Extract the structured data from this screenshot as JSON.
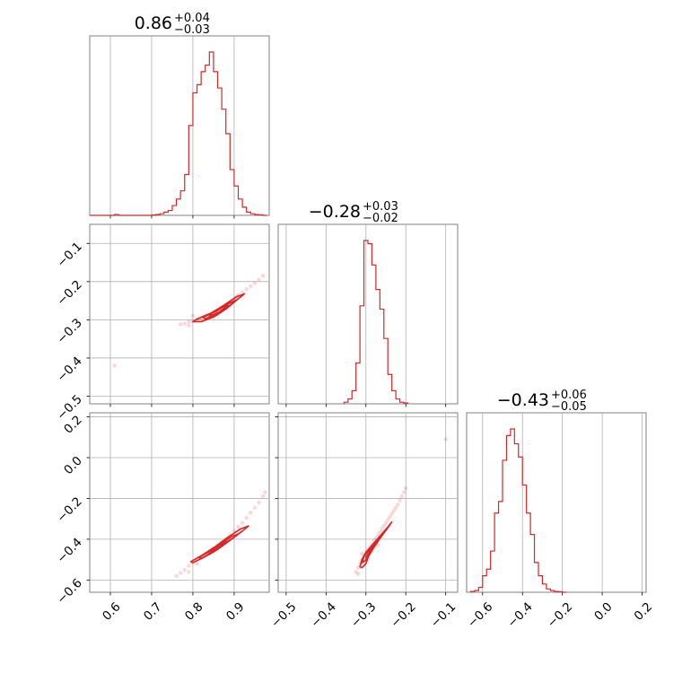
{
  "chart_data": {
    "type": "corner",
    "color": "#d62728",
    "grid": true,
    "parameters": [
      {
        "title": {
          "median": "0.86",
          "plus": "+0.04",
          "minus": "−0.03"
        },
        "range": [
          0.55,
          0.985
        ],
        "ticks": [
          0.6,
          0.7,
          0.8,
          0.9
        ],
        "tick_labels": [
          "0.6",
          "0.7",
          "0.8",
          "0.9"
        ]
      },
      {
        "title": {
          "median": "−0.28",
          "plus": "+0.03",
          "minus": "−0.02"
        },
        "range": [
          -0.52,
          -0.07
        ],
        "ticks": [
          -0.5,
          -0.4,
          -0.3,
          -0.2,
          -0.1
        ],
        "tick_labels": [
          "−0.5",
          "−0.4",
          "−0.3",
          "−0.2",
          "−0.1"
        ],
        "y_range": [
          -0.52,
          -0.05
        ],
        "y_ticks": [
          -0.5,
          -0.4,
          -0.3,
          -0.2,
          -0.1
        ],
        "y_tick_labels": [
          "−0.5",
          "−0.4",
          "−0.3",
          "−0.2",
          "−0.1"
        ]
      },
      {
        "title": {
          "median": "−0.43",
          "plus": "+0.06",
          "minus": "−0.05"
        },
        "range": [
          -0.68,
          0.22
        ],
        "ticks": [
          -0.6,
          -0.4,
          -0.2,
          0.0,
          0.2
        ],
        "tick_labels": [
          "−0.6",
          "−0.4",
          "−0.2",
          "0.0",
          "0.2"
        ],
        "y_range": [
          -0.66,
          0.22
        ],
        "y_ticks": [
          -0.6,
          -0.4,
          -0.2,
          0.0,
          0.2
        ],
        "y_tick_labels": [
          "−0.6",
          "−0.4",
          "−0.2",
          "0.0",
          "0.2"
        ]
      }
    ],
    "histograms": [
      {
        "param": 0,
        "bin_edges": [
          0.55,
          0.56,
          0.57,
          0.58,
          0.59,
          0.6,
          0.61,
          0.62,
          0.63,
          0.64,
          0.65,
          0.66,
          0.67,
          0.68,
          0.69,
          0.7,
          0.71,
          0.72,
          0.73,
          0.74,
          0.75,
          0.76,
          0.77,
          0.78,
          0.79,
          0.8,
          0.81,
          0.82,
          0.83,
          0.84,
          0.85,
          0.86,
          0.87,
          0.88,
          0.89,
          0.9,
          0.91,
          0.92,
          0.93,
          0.94,
          0.95,
          0.96,
          0.97,
          0.98
        ],
        "counts": [
          0,
          0,
          0,
          0,
          0,
          0,
          0.5,
          0,
          0,
          0,
          0,
          0,
          0,
          0,
          0,
          0.2,
          0.5,
          1,
          2,
          3,
          6,
          10,
          15,
          25,
          55,
          75,
          80,
          88,
          92,
          100,
          88,
          78,
          65,
          50,
          28,
          18,
          10,
          5,
          2,
          1,
          0.5,
          0.3,
          0
        ]
      },
      {
        "param": 1,
        "bin_edges": [
          -0.355,
          -0.345,
          -0.335,
          -0.325,
          -0.315,
          -0.305,
          -0.295,
          -0.285,
          -0.275,
          -0.265,
          -0.255,
          -0.245,
          -0.235,
          -0.225,
          -0.215,
          -0.205,
          -0.195
        ],
        "counts": [
          1,
          3,
          8,
          25,
          60,
          100,
          98,
          85,
          70,
          58,
          40,
          18,
          8,
          3,
          1,
          0.5
        ]
      },
      {
        "param": 2,
        "bin_edges": [
          -0.66,
          -0.64,
          -0.62,
          -0.6,
          -0.58,
          -0.56,
          -0.54,
          -0.52,
          -0.5,
          -0.48,
          -0.46,
          -0.44,
          -0.42,
          -0.4,
          -0.38,
          -0.36,
          -0.34,
          -0.32,
          -0.3,
          -0.28,
          -0.26,
          -0.24,
          -0.22,
          -0.2,
          -0.18
        ],
        "counts": [
          0.5,
          1,
          3,
          10,
          14,
          25,
          48,
          55,
          80,
          95,
          99,
          90,
          82,
          65,
          48,
          35,
          18,
          10,
          5,
          2,
          1,
          0.5,
          0.3,
          0
        ]
      }
    ],
    "scatter_panels": [
      {
        "x_param": 0,
        "y_param": 1,
        "samples": [
          [
            0.77,
            -0.312
          ],
          [
            0.78,
            -0.31
          ],
          [
            0.79,
            -0.305
          ],
          [
            0.8,
            -0.303
          ],
          [
            0.81,
            -0.3
          ],
          [
            0.815,
            -0.298
          ],
          [
            0.82,
            -0.296
          ],
          [
            0.825,
            -0.292
          ],
          [
            0.83,
            -0.29
          ],
          [
            0.835,
            -0.288
          ],
          [
            0.84,
            -0.286
          ],
          [
            0.845,
            -0.284
          ],
          [
            0.85,
            -0.28
          ],
          [
            0.855,
            -0.278
          ],
          [
            0.86,
            -0.276
          ],
          [
            0.865,
            -0.272
          ],
          [
            0.87,
            -0.27
          ],
          [
            0.875,
            -0.266
          ],
          [
            0.88,
            -0.262
          ],
          [
            0.885,
            -0.258
          ],
          [
            0.89,
            -0.255
          ],
          [
            0.895,
            -0.25
          ],
          [
            0.9,
            -0.245
          ],
          [
            0.905,
            -0.24
          ],
          [
            0.91,
            -0.235
          ],
          [
            0.92,
            -0.228
          ],
          [
            0.93,
            -0.22
          ],
          [
            0.94,
            -0.212
          ],
          [
            0.95,
            -0.204
          ],
          [
            0.96,
            -0.195
          ],
          [
            0.97,
            -0.185
          ],
          [
            0.61,
            -0.42
          ],
          [
            0.79,
            -0.315
          ],
          [
            0.8,
            -0.29
          ],
          [
            0.83,
            -0.3
          ],
          [
            0.86,
            -0.285
          ]
        ],
        "contours": [
          [
            [
              0.82,
              -0.305
            ],
            [
              0.85,
              -0.293
            ],
            [
              0.88,
              -0.272
            ],
            [
              0.91,
              -0.245
            ],
            [
              0.925,
              -0.232
            ],
            [
              0.905,
              -0.24
            ],
            [
              0.875,
              -0.262
            ],
            [
              0.845,
              -0.282
            ],
            [
              0.81,
              -0.298
            ],
            [
              0.8,
              -0.305
            ]
          ],
          [
            [
              0.83,
              -0.298
            ],
            [
              0.86,
              -0.284
            ],
            [
              0.89,
              -0.262
            ],
            [
              0.905,
              -0.248
            ],
            [
              0.885,
              -0.258
            ],
            [
              0.855,
              -0.278
            ],
            [
              0.825,
              -0.293
            ]
          ],
          [
            [
              0.84,
              -0.291
            ],
            [
              0.865,
              -0.279
            ],
            [
              0.885,
              -0.262
            ],
            [
              0.87,
              -0.268
            ],
            [
              0.845,
              -0.283
            ]
          ]
        ]
      },
      {
        "x_param": 0,
        "y_param": 2,
        "samples": [
          [
            0.76,
            -0.58
          ],
          [
            0.77,
            -0.565
          ],
          [
            0.78,
            -0.55
          ],
          [
            0.79,
            -0.53
          ],
          [
            0.8,
            -0.515
          ],
          [
            0.81,
            -0.5
          ],
          [
            0.82,
            -0.49
          ],
          [
            0.83,
            -0.475
          ],
          [
            0.84,
            -0.46
          ],
          [
            0.85,
            -0.445
          ],
          [
            0.86,
            -0.43
          ],
          [
            0.87,
            -0.415
          ],
          [
            0.88,
            -0.4
          ],
          [
            0.89,
            -0.38
          ],
          [
            0.9,
            -0.36
          ],
          [
            0.91,
            -0.34
          ],
          [
            0.92,
            -0.32
          ],
          [
            0.93,
            -0.295
          ],
          [
            0.94,
            -0.27
          ],
          [
            0.95,
            -0.245
          ],
          [
            0.96,
            -0.22
          ],
          [
            0.97,
            -0.19
          ],
          [
            0.975,
            -0.17
          ],
          [
            0.79,
            -0.56
          ],
          [
            0.81,
            -0.52
          ],
          [
            0.84,
            -0.47
          ],
          [
            0.87,
            -0.43
          ]
        ],
        "contours": [
          [
            [
              0.8,
              -0.515
            ],
            [
              0.83,
              -0.485
            ],
            [
              0.86,
              -0.45
            ],
            [
              0.89,
              -0.405
            ],
            [
              0.92,
              -0.36
            ],
            [
              0.935,
              -0.335
            ],
            [
              0.915,
              -0.35
            ],
            [
              0.885,
              -0.39
            ],
            [
              0.855,
              -0.435
            ],
            [
              0.825,
              -0.475
            ],
            [
              0.795,
              -0.51
            ]
          ],
          [
            [
              0.82,
              -0.495
            ],
            [
              0.85,
              -0.462
            ],
            [
              0.88,
              -0.42
            ],
            [
              0.91,
              -0.375
            ],
            [
              0.895,
              -0.385
            ],
            [
              0.865,
              -0.425
            ],
            [
              0.835,
              -0.465
            ],
            [
              0.815,
              -0.49
            ]
          ],
          [
            [
              0.835,
              -0.478
            ],
            [
              0.86,
              -0.448
            ],
            [
              0.89,
              -0.405
            ],
            [
              0.875,
              -0.418
            ],
            [
              0.848,
              -0.455
            ]
          ]
        ]
      },
      {
        "x_param": 1,
        "y_param": 2,
        "samples": [
          [
            -0.325,
            -0.56
          ],
          [
            -0.32,
            -0.54
          ],
          [
            -0.315,
            -0.52
          ],
          [
            -0.31,
            -0.5
          ],
          [
            -0.305,
            -0.48
          ],
          [
            -0.3,
            -0.465
          ],
          [
            -0.295,
            -0.45
          ],
          [
            -0.29,
            -0.44
          ],
          [
            -0.285,
            -0.425
          ],
          [
            -0.28,
            -0.41
          ],
          [
            -0.275,
            -0.395
          ],
          [
            -0.27,
            -0.38
          ],
          [
            -0.265,
            -0.365
          ],
          [
            -0.26,
            -0.35
          ],
          [
            -0.255,
            -0.335
          ],
          [
            -0.25,
            -0.32
          ],
          [
            -0.245,
            -0.305
          ],
          [
            -0.24,
            -0.29
          ],
          [
            -0.235,
            -0.275
          ],
          [
            -0.23,
            -0.26
          ],
          [
            -0.225,
            -0.245
          ],
          [
            -0.22,
            -0.23
          ],
          [
            -0.215,
            -0.21
          ],
          [
            -0.21,
            -0.19
          ],
          [
            -0.205,
            -0.17
          ],
          [
            -0.2,
            -0.15
          ],
          [
            -0.31,
            -0.47
          ],
          [
            -0.295,
            -0.5
          ],
          [
            -0.285,
            -0.46
          ],
          [
            -0.27,
            -0.43
          ],
          [
            -0.1,
            0.09
          ],
          [
            -0.32,
            -0.57
          ]
        ],
        "contours": [
          [
            [
              -0.315,
              -0.535
            ],
            [
              -0.31,
              -0.5
            ],
            [
              -0.3,
              -0.465
            ],
            [
              -0.285,
              -0.43
            ],
            [
              -0.265,
              -0.385
            ],
            [
              -0.245,
              -0.34
            ],
            [
              -0.235,
              -0.315
            ],
            [
              -0.24,
              -0.33
            ],
            [
              -0.255,
              -0.37
            ],
            [
              -0.27,
              -0.41
            ],
            [
              -0.285,
              -0.455
            ],
            [
              -0.295,
              -0.49
            ],
            [
              -0.3,
              -0.52
            ],
            [
              -0.31,
              -0.54
            ]
          ],
          [
            [
              -0.31,
              -0.515
            ],
            [
              -0.305,
              -0.485
            ],
            [
              -0.29,
              -0.45
            ],
            [
              -0.27,
              -0.405
            ],
            [
              -0.255,
              -0.365
            ],
            [
              -0.26,
              -0.38
            ],
            [
              -0.275,
              -0.425
            ],
            [
              -0.29,
              -0.47
            ],
            [
              -0.302,
              -0.505
            ]
          ],
          [
            [
              -0.3,
              -0.49
            ],
            [
              -0.29,
              -0.46
            ],
            [
              -0.275,
              -0.425
            ],
            [
              -0.265,
              -0.395
            ],
            [
              -0.272,
              -0.415
            ],
            [
              -0.285,
              -0.45
            ],
            [
              -0.296,
              -0.48
            ]
          ]
        ]
      }
    ]
  }
}
